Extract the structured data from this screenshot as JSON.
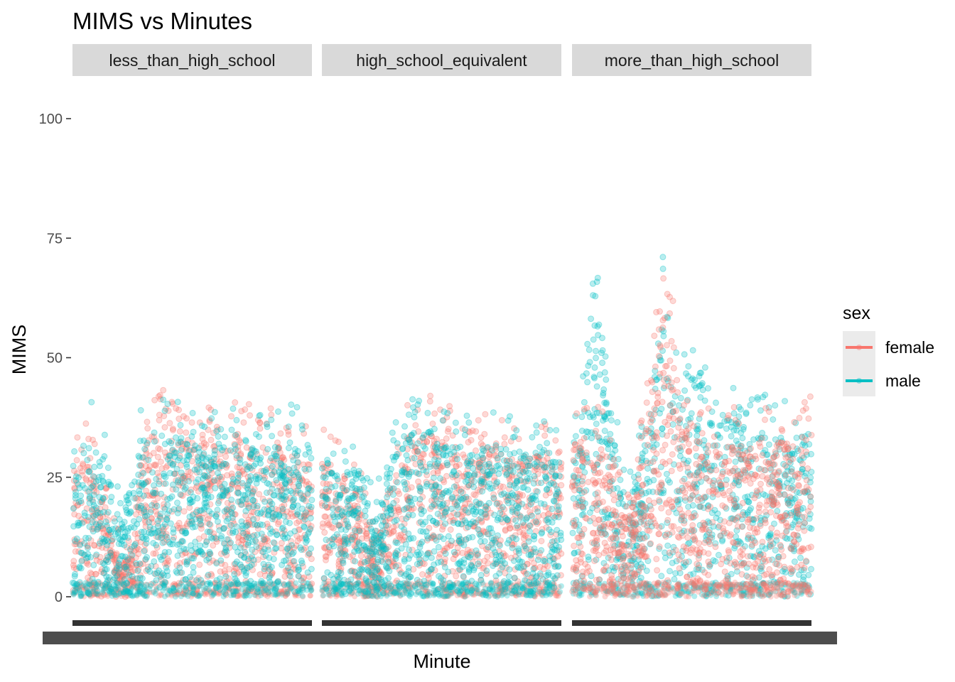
{
  "chart_data": {
    "type": "scatter",
    "title": "MIMS vs Minutes",
    "xlabel": "Minute",
    "ylabel": "MIMS",
    "ylim": [
      0,
      105
    ],
    "yticks": [
      0,
      25,
      50,
      75,
      100
    ],
    "xlim": [
      0,
      1440
    ],
    "facets": [
      "less_than_high_school",
      "high_school_equivalent",
      "more_than_high_school"
    ],
    "legend": {
      "title": "sex",
      "position": "right",
      "entries": [
        {
          "label": "female",
          "color": "#F8766D"
        },
        {
          "label": "male",
          "color": "#00BFC4"
        }
      ]
    },
    "series": [
      {
        "name": "female",
        "color": "#F8766D",
        "envelope": [
          [
            [
              0,
              28
            ],
            [
              60,
              30
            ],
            [
              120,
              26
            ],
            [
              180,
              22
            ],
            [
              240,
              12
            ],
            [
              300,
              6
            ],
            [
              360,
              12
            ],
            [
              420,
              30
            ],
            [
              480,
              36
            ],
            [
              540,
              38
            ],
            [
              600,
              36
            ],
            [
              660,
              33
            ],
            [
              720,
              34
            ],
            [
              780,
              32
            ],
            [
              840,
              32
            ],
            [
              900,
              30
            ],
            [
              960,
              34
            ],
            [
              1020,
              33
            ],
            [
              1080,
              32
            ],
            [
              1140,
              30
            ],
            [
              1200,
              32
            ],
            [
              1260,
              31
            ],
            [
              1320,
              30
            ],
            [
              1380,
              28
            ],
            [
              1440,
              28
            ]
          ],
          [
            [
              0,
              27
            ],
            [
              60,
              28
            ],
            [
              120,
              25
            ],
            [
              180,
              26
            ],
            [
              240,
              18
            ],
            [
              300,
              12
            ],
            [
              360,
              16
            ],
            [
              420,
              26
            ],
            [
              480,
              32
            ],
            [
              540,
              34
            ],
            [
              600,
              36
            ],
            [
              660,
              37
            ],
            [
              720,
              32
            ],
            [
              780,
              33
            ],
            [
              840,
              30
            ],
            [
              900,
              30
            ],
            [
              960,
              31
            ],
            [
              1020,
              33
            ],
            [
              1080,
              32
            ],
            [
              1140,
              29
            ],
            [
              1200,
              30
            ],
            [
              1260,
              29
            ],
            [
              1320,
              30
            ],
            [
              1380,
              29
            ],
            [
              1440,
              28
            ]
          ],
          [
            [
              0,
              35
            ],
            [
              60,
              33
            ],
            [
              120,
              30
            ],
            [
              180,
              33
            ],
            [
              240,
              24
            ],
            [
              300,
              18
            ],
            [
              360,
              18
            ],
            [
              420,
              30
            ],
            [
              480,
              48
            ],
            [
              540,
              62
            ],
            [
              600,
              56
            ],
            [
              660,
              38
            ],
            [
              720,
              34
            ],
            [
              780,
              32
            ],
            [
              840,
              34
            ],
            [
              900,
              33
            ],
            [
              960,
              32
            ],
            [
              1020,
              33
            ],
            [
              1080,
              31
            ],
            [
              1140,
              33
            ],
            [
              1200,
              32
            ],
            [
              1260,
              33
            ],
            [
              1320,
              32
            ],
            [
              1380,
              33
            ],
            [
              1440,
              34
            ]
          ]
        ]
      },
      {
        "name": "male",
        "color": "#00BFC4",
        "envelope": [
          [
            [
              0,
              28
            ],
            [
              60,
              30
            ],
            [
              120,
              33
            ],
            [
              180,
              29
            ],
            [
              240,
              22
            ],
            [
              300,
              15
            ],
            [
              360,
              26
            ],
            [
              420,
              32
            ],
            [
              480,
              33
            ],
            [
              540,
              34
            ],
            [
              600,
              33
            ],
            [
              660,
              34
            ],
            [
              720,
              32
            ],
            [
              780,
              31
            ],
            [
              840,
              32
            ],
            [
              900,
              33
            ],
            [
              960,
              32
            ],
            [
              1020,
              31
            ],
            [
              1080,
              32
            ],
            [
              1140,
              30
            ],
            [
              1200,
              31
            ],
            [
              1260,
              32
            ],
            [
              1320,
              33
            ],
            [
              1380,
              32
            ],
            [
              1440,
              32
            ]
          ],
          [
            [
              0,
              30
            ],
            [
              60,
              28
            ],
            [
              120,
              25
            ],
            [
              180,
              27
            ],
            [
              240,
              26
            ],
            [
              300,
              16
            ],
            [
              360,
              20
            ],
            [
              420,
              28
            ],
            [
              480,
              32
            ],
            [
              540,
              34
            ],
            [
              600,
              36
            ],
            [
              660,
              34
            ],
            [
              720,
              31
            ],
            [
              780,
              33
            ],
            [
              840,
              32
            ],
            [
              900,
              30
            ],
            [
              960,
              31
            ],
            [
              1020,
              32
            ],
            [
              1080,
              31
            ],
            [
              1140,
              30
            ],
            [
              1200,
              31
            ],
            [
              1260,
              30
            ],
            [
              1320,
              31
            ],
            [
              1380,
              30
            ],
            [
              1440,
              31
            ]
          ],
          [
            [
              0,
              33
            ],
            [
              60,
              35
            ],
            [
              120,
              70
            ],
            [
              180,
              58
            ],
            [
              240,
              38
            ],
            [
              300,
              22
            ],
            [
              360,
              22
            ],
            [
              420,
              30
            ],
            [
              480,
              40
            ],
            [
              540,
              66
            ],
            [
              600,
              42
            ],
            [
              660,
              46
            ],
            [
              720,
              48
            ],
            [
              780,
              44
            ],
            [
              840,
              38
            ],
            [
              900,
              36
            ],
            [
              960,
              38
            ],
            [
              1020,
              36
            ],
            [
              1080,
              34
            ],
            [
              1140,
              35
            ],
            [
              1200,
              33
            ],
            [
              1260,
              34
            ],
            [
              1320,
              33
            ],
            [
              1380,
              34
            ],
            [
              1440,
              35
            ]
          ]
        ]
      }
    ]
  }
}
